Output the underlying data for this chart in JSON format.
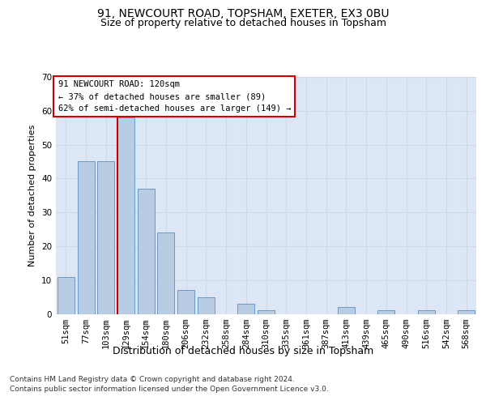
{
  "title1": "91, NEWCOURT ROAD, TOPSHAM, EXETER, EX3 0BU",
  "title2": "Size of property relative to detached houses in Topsham",
  "xlabel": "Distribution of detached houses by size in Topsham",
  "ylabel": "Number of detached properties",
  "categories": [
    "51sqm",
    "77sqm",
    "103sqm",
    "129sqm",
    "154sqm",
    "180sqm",
    "206sqm",
    "232sqm",
    "258sqm",
    "284sqm",
    "310sqm",
    "335sqm",
    "361sqm",
    "387sqm",
    "413sqm",
    "439sqm",
    "465sqm",
    "490sqm",
    "516sqm",
    "542sqm",
    "568sqm"
  ],
  "values": [
    11,
    45,
    45,
    58,
    37,
    24,
    7,
    5,
    0,
    3,
    1,
    0,
    0,
    0,
    2,
    0,
    1,
    0,
    1,
    0,
    1
  ],
  "bar_color": "#b8cce4",
  "bar_edge_color": "#5a8fc2",
  "grid_color": "#d0d8e8",
  "background_color": "#dce6f5",
  "annotation_box_text": "91 NEWCOURT ROAD: 120sqm\n← 37% of detached houses are smaller (89)\n62% of semi-detached houses are larger (149) →",
  "annotation_box_color": "white",
  "annotation_box_edge_color": "#cc0000",
  "vline_color": "#cc0000",
  "vline_x": 2.57,
  "ylim": [
    0,
    70
  ],
  "yticks": [
    0,
    10,
    20,
    30,
    40,
    50,
    60,
    70
  ],
  "footer1": "Contains HM Land Registry data © Crown copyright and database right 2024.",
  "footer2": "Contains public sector information licensed under the Open Government Licence v3.0.",
  "title1_fontsize": 10,
  "title2_fontsize": 9,
  "xlabel_fontsize": 9,
  "ylabel_fontsize": 8,
  "tick_fontsize": 7.5,
  "annotation_fontsize": 7.5,
  "footer_fontsize": 6.5
}
